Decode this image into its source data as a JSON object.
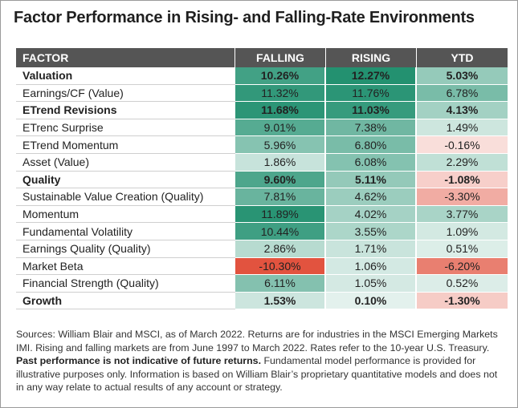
{
  "title": "Factor Performance in Rising- and Falling-Rate Environments",
  "table": {
    "headers": [
      "FACTOR",
      "FALLING",
      "RISING",
      "YTD"
    ],
    "rows": [
      {
        "factor": "Valuation",
        "bold": true,
        "falling": "10.26%",
        "rising": "12.27%",
        "ytd": "5.03%"
      },
      {
        "factor": "Earnings/CF (Value)",
        "bold": false,
        "falling": "11.32%",
        "rising": "11.76%",
        "ytd": "6.78%"
      },
      {
        "factor": "ETrend Revisions",
        "bold": true,
        "falling": "11.68%",
        "rising": "11.03%",
        "ytd": "4.13%"
      },
      {
        "factor": "ETrenc Surprise",
        "bold": false,
        "falling": "9.01%",
        "rising": "7.38%",
        "ytd": "1.49%"
      },
      {
        "factor": "ETrend Momentum",
        "bold": false,
        "falling": "5.96%",
        "rising": "6.80%",
        "ytd": "-0.16%"
      },
      {
        "factor": "Asset (Value)",
        "bold": false,
        "falling": "1.86%",
        "rising": "6.08%",
        "ytd": "2.29%"
      },
      {
        "factor": "Quality",
        "bold": true,
        "falling": "9.60%",
        "rising": "5.11%",
        "ytd": "-1.08%"
      },
      {
        "factor": "Sustainable Value Creation (Quality)",
        "bold": false,
        "falling": "7.81%",
        "rising": "4.62%",
        "ytd": "-3.30%"
      },
      {
        "factor": "Momentum",
        "bold": false,
        "falling": "11.89%",
        "rising": "4.02%",
        "ytd": "3.77%"
      },
      {
        "factor": "Fundamental Volatility",
        "bold": false,
        "falling": "10.44%",
        "rising": "3.55%",
        "ytd": "1.09%"
      },
      {
        "factor": "Earnings Quality (Quality)",
        "bold": false,
        "falling": "2.86%",
        "rising": "1.71%",
        "ytd": "0.51%"
      },
      {
        "factor": "Market Beta",
        "bold": false,
        "falling": "-10.30%",
        "rising": "1.06%",
        "ytd": "-6.20%"
      },
      {
        "factor": "Financial Strength (Quality)",
        "bold": false,
        "falling": "6.11%",
        "rising": "1.05%",
        "ytd": "0.52%"
      },
      {
        "factor": "Growth",
        "bold": true,
        "falling": "1.53%",
        "rising": "0.10%",
        "ytd": "-1.30%"
      }
    ]
  },
  "chart_data": {
    "type": "heatmap",
    "title": "Factor Performance in Rising- and Falling-Rate Environments",
    "columns": [
      "FALLING",
      "RISING",
      "YTD"
    ],
    "rows": [
      "Valuation",
      "Earnings/CF (Value)",
      "ETrend Revisions",
      "ETrenc Surprise",
      "ETrend Momentum",
      "Asset (Value)",
      "Quality",
      "Sustainable Value Creation (Quality)",
      "Momentum",
      "Fundamental Volatility",
      "Earnings Quality (Quality)",
      "Market Beta",
      "Financial Strength (Quality)",
      "Growth"
    ],
    "values": [
      [
        10.26,
        12.27,
        5.03
      ],
      [
        11.32,
        11.76,
        6.78
      ],
      [
        11.68,
        11.03,
        4.13
      ],
      [
        9.01,
        7.38,
        1.49
      ],
      [
        5.96,
        6.8,
        -0.16
      ],
      [
        1.86,
        6.08,
        2.29
      ],
      [
        9.6,
        5.11,
        -1.08
      ],
      [
        7.81,
        4.62,
        -3.3
      ],
      [
        11.89,
        4.02,
        3.77
      ],
      [
        10.44,
        3.55,
        1.09
      ],
      [
        2.86,
        1.71,
        0.51
      ],
      [
        -10.3,
        1.06,
        -6.2
      ],
      [
        6.11,
        1.05,
        0.52
      ],
      [
        1.53,
        0.1,
        -1.3
      ]
    ],
    "colors": {
      "positive_high": "#1f8f6e",
      "neutral": "#ffffff",
      "negative_high": "#e2533f"
    }
  },
  "footnote": {
    "part1": "Sources: William Blair and MSCI, as of March 2022. Returns are for industries in the MSCI Emerging Markets IMI. Rising and falling markets are from June 1997 to March 2022. Rates refer to the 10-year U.S. Treasury. ",
    "bold": "Past performance is not indicative of future returns.",
    "part2": " Fundamental model performance is provided for illustrative purposes only. Information is based on William Blair’s proprietary quantitative models and does not in any way relate to actual results of any account or strategy."
  }
}
